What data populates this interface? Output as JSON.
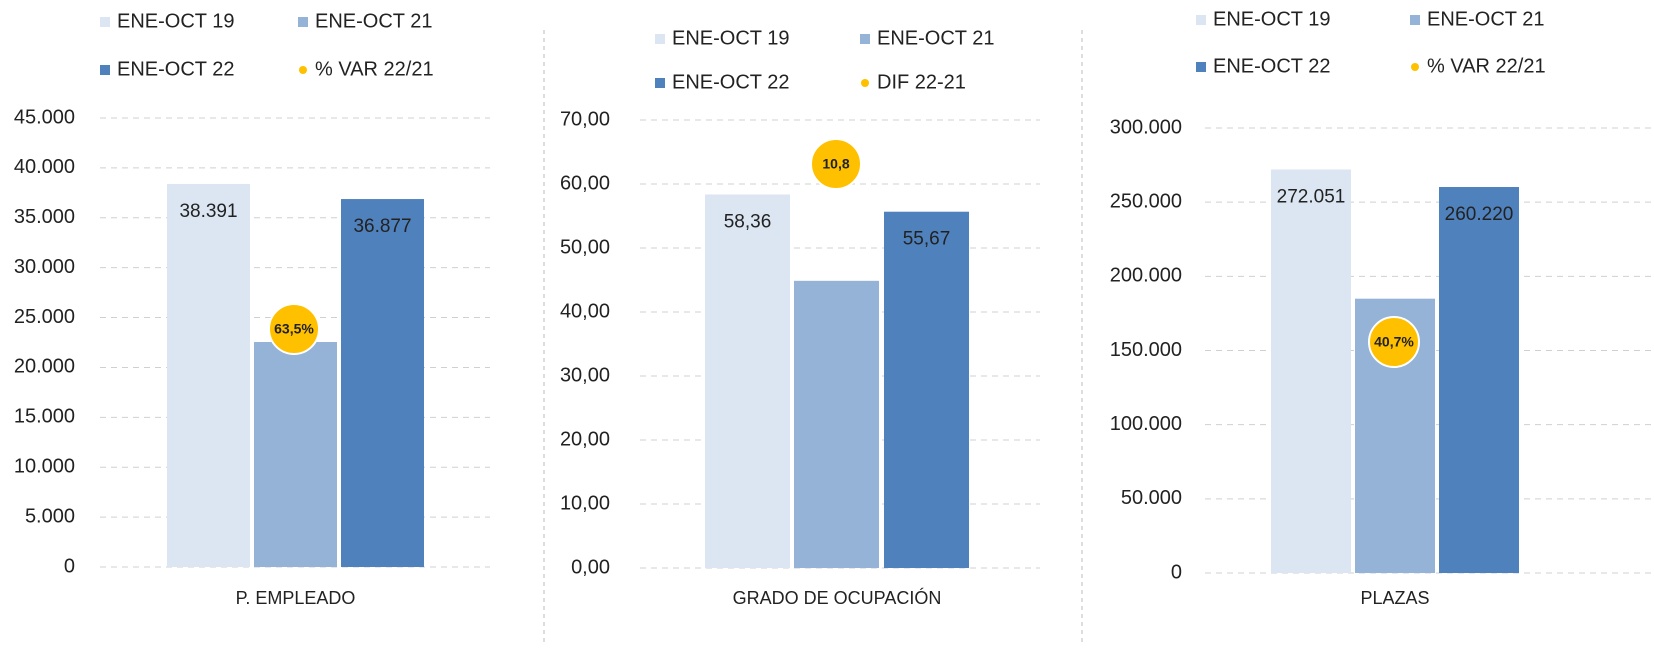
{
  "chart_data": [
    {
      "type": "bar",
      "categories": [
        "P. EMPLEADO"
      ],
      "series": [
        {
          "name": "ENE-OCT 19",
          "color": "#dce6f2",
          "values": [
            38391
          ],
          "value_labels": [
            "38.391"
          ]
        },
        {
          "name": "ENE-OCT 21",
          "color": "#95b3d7",
          "values": [
            22550
          ]
        },
        {
          "name": "ENE-OCT 22",
          "color": "#4f81bd",
          "values": [
            36877
          ],
          "value_labels": [
            "36.877"
          ]
        },
        {
          "name": "% VAR 22/21",
          "color": "#ffc000",
          "values": [
            63.5
          ],
          "value_labels": [
            "63,5%"
          ]
        }
      ],
      "ylim": [
        0,
        45000
      ],
      "yticks": [
        0,
        {
          "value": 5000,
          "label": "5.000"
        },
        {
          "value": 10000,
          "label": "10.000"
        },
        {
          "value": 15000,
          "label": "15.000"
        },
        {
          "value": 20000,
          "label": "20.000"
        },
        {
          "value": 25000,
          "label": "25.000"
        },
        {
          "value": 30000,
          "label": "30.000"
        },
        {
          "value": 35000,
          "label": "35.000"
        },
        {
          "value": 40000,
          "label": "40.000"
        },
        {
          "value": 45000,
          "label": "45.000"
        }
      ],
      "grid": true
    },
    {
      "type": "bar",
      "categories": [
        "GRADO DE OCUPACIÓN"
      ],
      "series": [
        {
          "name": "ENE-OCT 19",
          "color": "#dce6f2",
          "values": [
            58.36
          ],
          "value_labels": [
            "58,36"
          ]
        },
        {
          "name": "ENE-OCT 21",
          "color": "#95b3d7",
          "values": [
            44.87
          ]
        },
        {
          "name": "ENE-OCT 22",
          "color": "#4f81bd",
          "values": [
            55.67
          ],
          "value_labels": [
            "55,67"
          ]
        },
        {
          "name": "DIF 22-21",
          "color": "#ffc000",
          "values": [
            10.8
          ],
          "value_labels": [
            "10,8"
          ]
        }
      ],
      "ylim": [
        0,
        70
      ],
      "yticks": [
        {
          "value": 0,
          "label": "0,00"
        },
        {
          "value": 10,
          "label": "10,00"
        },
        {
          "value": 20,
          "label": "20,00"
        },
        {
          "value": 30,
          "label": "30,00"
        },
        {
          "value": 40,
          "label": "40,00"
        },
        {
          "value": 50,
          "label": "50,00"
        },
        {
          "value": 60,
          "label": "60,00"
        },
        {
          "value": 70,
          "label": "70,00"
        }
      ],
      "grid": true
    },
    {
      "type": "bar",
      "categories": [
        "PLAZAS"
      ],
      "series": [
        {
          "name": "ENE-OCT 19",
          "color": "#dce6f2",
          "values": [
            272051
          ],
          "value_labels": [
            "272.051"
          ]
        },
        {
          "name": "ENE-OCT 21",
          "color": "#95b3d7",
          "values": [
            184930
          ]
        },
        {
          "name": "ENE-OCT 22",
          "color": "#4f81bd",
          "values": [
            260220
          ],
          "value_labels": [
            "260.220"
          ]
        },
        {
          "name": "% VAR 22/21",
          "color": "#ffc000",
          "values": [
            40.7
          ],
          "value_labels": [
            "40,7%"
          ]
        }
      ],
      "ylim": [
        0,
        300000
      ],
      "yticks": [
        0,
        {
          "value": 50000,
          "label": "50.000"
        },
        {
          "value": 100000,
          "label": "100.000"
        },
        {
          "value": 150000,
          "label": "150.000"
        },
        {
          "value": 200000,
          "label": "200.000"
        },
        {
          "value": 250000,
          "label": "250.000"
        },
        {
          "value": 300000,
          "label": "300.000"
        }
      ],
      "grid": true
    }
  ]
}
